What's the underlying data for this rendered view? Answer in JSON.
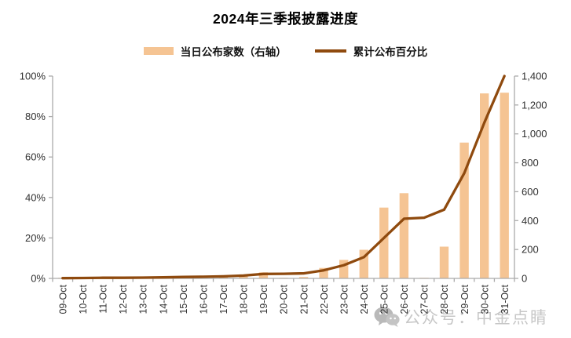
{
  "title": "2024年三季报披露进度",
  "legend": [
    {
      "label": "当日公布家数（右轴）",
      "type": "bar"
    },
    {
      "label": "累计公布百分比",
      "type": "line"
    }
  ],
  "watermark": {
    "text": "公众号：中金点睛",
    "icon": "wechat-icon"
  },
  "colors": {
    "bar": "#F5C493",
    "line": "#8F4A0E",
    "axis": "#ABABAB",
    "label_text": "#303030",
    "title_text": "#000000",
    "watermark": "#C7C7C7"
  },
  "chart_data": {
    "type": "bar+line combo",
    "title": "2024年三季报披露进度",
    "categories": [
      "09-Oct",
      "10-Oct",
      "11-Oct",
      "12-Oct",
      "13-Oct",
      "14-Oct",
      "15-Oct",
      "16-Oct",
      "17-Oct",
      "18-Oct",
      "19-Oct",
      "20-Oct",
      "21-Oct",
      "22-Oct",
      "23-Oct",
      "24-Oct",
      "25-Oct",
      "26-Oct",
      "27-Oct",
      "28-Oct",
      "29-Oct",
      "30-Oct",
      "31-Oct"
    ],
    "series": [
      {
        "name": "当日公布家数（右轴）",
        "type": "bar",
        "axis": "right",
        "values": [
          2,
          2,
          3,
          3,
          2,
          4,
          6,
          8,
          10,
          22,
          42,
          4,
          10,
          72,
          128,
          198,
          490,
          590,
          2,
          220,
          940,
          1280,
          1285
        ]
      },
      {
        "name": "累计公布百分比",
        "type": "line",
        "axis": "left",
        "values": [
          0.1,
          0.2,
          0.3,
          0.3,
          0.4,
          0.5,
          0.7,
          0.8,
          1.0,
          1.4,
          2.2,
          2.3,
          2.5,
          4.0,
          6.5,
          10.5,
          20.0,
          29.5,
          30.0,
          34.0,
          52.0,
          77.0,
          100.0
        ]
      }
    ],
    "left_axis": {
      "min": 0,
      "max": 100,
      "ticks": [
        "0%",
        "20%",
        "40%",
        "60%",
        "80%",
        "100%"
      ]
    },
    "right_axis": {
      "min": 0,
      "max": 1400,
      "ticks": [
        "0",
        "200",
        "400",
        "600",
        "800",
        "1,000",
        "1,200",
        "1,400"
      ]
    },
    "grid": false,
    "legend_position": "top"
  }
}
